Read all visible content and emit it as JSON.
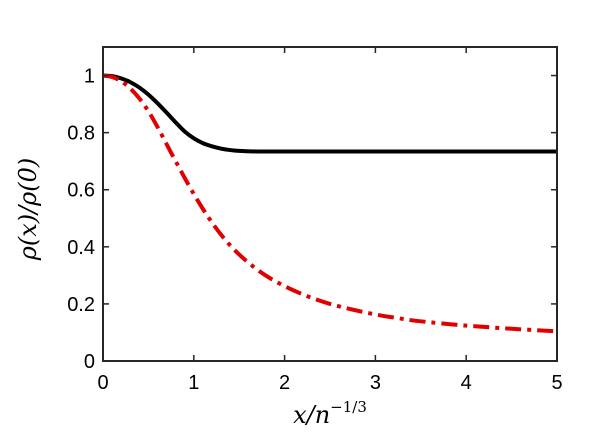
{
  "chart_data": {
    "type": "line",
    "title": "",
    "xlabel": "x/n^{-1/3}",
    "ylabel": "ρ(x)/ρ(0)",
    "xlim": [
      0,
      5
    ],
    "ylim": [
      0,
      1.1
    ],
    "xticks": [
      0,
      1,
      2,
      3,
      4,
      5
    ],
    "xtick_labels": [
      "0",
      "1",
      "2",
      "3",
      "4",
      "5"
    ],
    "yticks": [
      0,
      0.2,
      0.4,
      0.6,
      0.8,
      1
    ],
    "ytick_labels": [
      "0",
      "0.2",
      "0.4",
      "0.6",
      "0.8",
      "1"
    ],
    "grid": false,
    "legend": "none",
    "series": [
      {
        "color": "#000000",
        "style": "solid",
        "x": [
          0,
          0.1,
          0.2,
          0.3,
          0.4,
          0.5,
          0.6,
          0.7,
          0.8,
          0.9,
          1.0,
          1.1,
          1.2,
          1.3,
          1.4,
          1.5,
          1.7,
          2.0,
          2.5,
          3.0,
          3.5,
          4.0,
          4.5,
          5.0
        ],
        "y": [
          1.0,
          0.998,
          0.99,
          0.977,
          0.958,
          0.933,
          0.903,
          0.87,
          0.836,
          0.804,
          0.78,
          0.763,
          0.752,
          0.744,
          0.739,
          0.736,
          0.734,
          0.734,
          0.734,
          0.734,
          0.734,
          0.734,
          0.734,
          0.734
        ]
      },
      {
        "color": "#e00000",
        "style": "dash-dot",
        "x": [
          0,
          0.1,
          0.2,
          0.3,
          0.4,
          0.5,
          0.6,
          0.7,
          0.8,
          1.0,
          1.2,
          1.4,
          1.6,
          1.8,
          2.0,
          2.25,
          2.5,
          2.75,
          3.0,
          3.25,
          3.5,
          4.0,
          4.5,
          5.0
        ],
        "y": [
          1.0,
          0.995,
          0.98,
          0.955,
          0.92,
          0.875,
          0.82,
          0.76,
          0.7,
          0.585,
          0.485,
          0.405,
          0.345,
          0.298,
          0.262,
          0.227,
          0.2,
          0.18,
          0.163,
          0.15,
          0.139,
          0.124,
          0.113,
          0.104
        ]
      }
    ]
  }
}
